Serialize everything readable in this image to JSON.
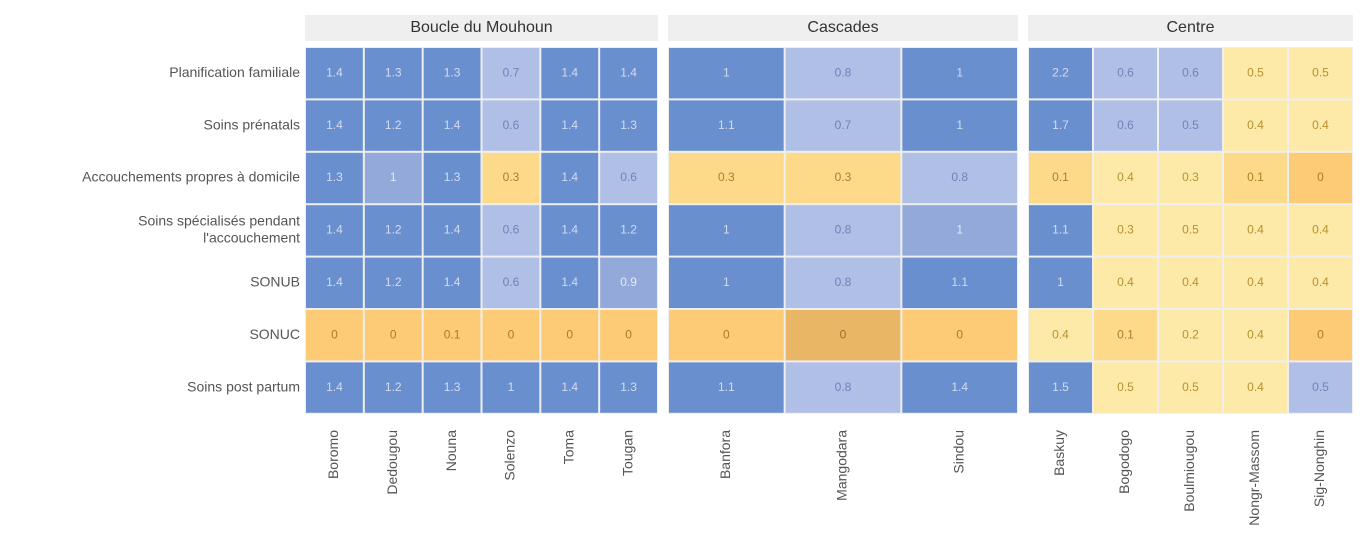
{
  "chart_data": {
    "type": "heatmap",
    "rows": [
      "Planification familiale",
      "Soins prénatals",
      "Accouchements propres à domicile",
      [
        "Soins spécialisés pendant",
        "l'accouchement"
      ],
      "SONUB",
      "SONUC",
      "Soins post partum"
    ],
    "panels": [
      {
        "title": "Boucle du Mouhoun",
        "columns": [
          "Boromo",
          "Dedougou",
          "Nouna",
          "Solenzo",
          "Toma",
          "Tougan"
        ],
        "values": [
          [
            1.4,
            1.3,
            1.3,
            0.7,
            1.4,
            1.4
          ],
          [
            1.4,
            1.2,
            1.4,
            0.6,
            1.4,
            1.3
          ],
          [
            1.3,
            1,
            1.3,
            0.3,
            1.4,
            0.6
          ],
          [
            1.4,
            1.2,
            1.4,
            0.6,
            1.4,
            1.2
          ],
          [
            1.4,
            1.2,
            1.4,
            0.6,
            1.4,
            0.9
          ],
          [
            0,
            0,
            0.1,
            0,
            0,
            0
          ],
          [
            1.4,
            1.2,
            1.3,
            1,
            1.4,
            1.3
          ]
        ],
        "colors": [
          [
            "#6a8fcf",
            "#6a8fcf",
            "#6a8fcf",
            "#b0bfe6",
            "#6a8fcf",
            "#6a8fcf"
          ],
          [
            "#6a8fcf",
            "#6a8fcf",
            "#6a8fcf",
            "#b0bfe6",
            "#6a8fcf",
            "#6a8fcf"
          ],
          [
            "#6a8fcf",
            "#93a9da",
            "#6a8fcf",
            "#fdd98a",
            "#6a8fcf",
            "#b0bfe6"
          ],
          [
            "#6a8fcf",
            "#6a8fcf",
            "#6a8fcf",
            "#b0bfe6",
            "#6a8fcf",
            "#6a8fcf"
          ],
          [
            "#6a8fcf",
            "#6a8fcf",
            "#6a8fcf",
            "#b0bfe6",
            "#6a8fcf",
            "#93a9da"
          ],
          [
            "#fdcb75",
            "#fdcb75",
            "#fdcb75",
            "#fdcb75",
            "#fdcb75",
            "#fdcb75"
          ],
          [
            "#6a8fcf",
            "#6a8fcf",
            "#6a8fcf",
            "#6a8fcf",
            "#6a8fcf",
            "#6a8fcf"
          ]
        ]
      },
      {
        "title": "Cascades",
        "columns": [
          "Banfora",
          "Mangodara",
          "Sindou"
        ],
        "values": [
          [
            1,
            0.8,
            1
          ],
          [
            1.1,
            0.7,
            1
          ],
          [
            0.3,
            0.3,
            0.8
          ],
          [
            1,
            0.8,
            1
          ],
          [
            1,
            0.8,
            1.1
          ],
          [
            0,
            0,
            0
          ],
          [
            1.1,
            0.8,
            1.4
          ]
        ],
        "colors": [
          [
            "#6a8fcf",
            "#b0bfe6",
            "#6a8fcf"
          ],
          [
            "#6a8fcf",
            "#b0bfe6",
            "#6a8fcf"
          ],
          [
            "#fdd98a",
            "#fdd98a",
            "#b0bfe6"
          ],
          [
            "#6a8fcf",
            "#b0bfe6",
            "#93a9da"
          ],
          [
            "#6a8fcf",
            "#b0bfe6",
            "#6a8fcf"
          ],
          [
            "#fdcb75",
            "#e8b665",
            "#fdcb75"
          ],
          [
            "#6a8fcf",
            "#b0bfe6",
            "#6a8fcf"
          ]
        ]
      },
      {
        "title": "Centre",
        "columns": [
          "Baskuy",
          "Bogodogo",
          "Boulmiougou",
          "Nongr-Massom",
          "Sig-Nonghin"
        ],
        "values": [
          [
            2.2,
            0.6,
            0.6,
            0.5,
            0.5
          ],
          [
            1.7,
            0.6,
            0.5,
            0.4,
            0.4
          ],
          [
            0.1,
            0.4,
            0.3,
            0.1,
            0
          ],
          [
            1.1,
            0.3,
            0.5,
            0.4,
            0.4
          ],
          [
            1,
            0.4,
            0.4,
            0.4,
            0.4
          ],
          [
            0.4,
            0.1,
            0.2,
            0.4,
            0
          ],
          [
            1.5,
            0.5,
            0.5,
            0.4,
            0.5
          ]
        ],
        "colors": [
          [
            "#6a8fcf",
            "#b0bfe6",
            "#b0bfe6",
            "#fde9a8",
            "#fde9a8"
          ],
          [
            "#6a8fcf",
            "#b0bfe6",
            "#b0bfe6",
            "#fde9a8",
            "#fde9a8"
          ],
          [
            "#fdd98a",
            "#fde9a8",
            "#fde9a8",
            "#fdd98a",
            "#fdcb75"
          ],
          [
            "#6a8fcf",
            "#fde9a8",
            "#fde9a8",
            "#fde9a8",
            "#fde9a8"
          ],
          [
            "#6a8fcf",
            "#fde9a8",
            "#fde9a8",
            "#fde9a8",
            "#fde9a8"
          ],
          [
            "#fde9a8",
            "#fdd98a",
            "#fde9a8",
            "#fde9a8",
            "#fdcb75"
          ],
          [
            "#6a8fcf",
            "#fde9a8",
            "#fde9a8",
            "#fde9a8",
            "#b0bfe6"
          ]
        ]
      }
    ]
  }
}
